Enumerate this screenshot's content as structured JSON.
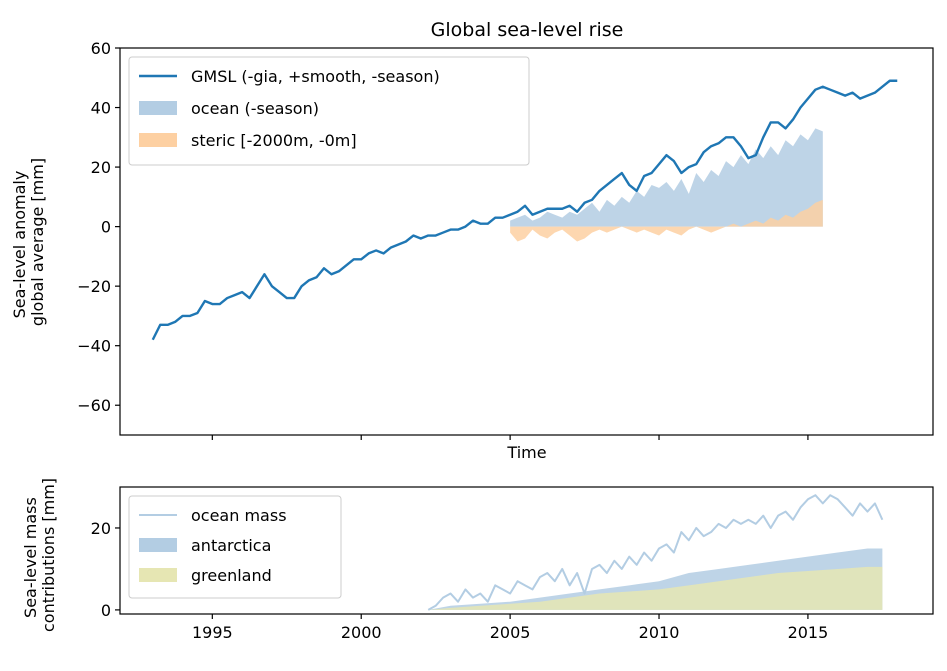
{
  "chart_data": [
    {
      "type": "line",
      "title": "Global sea-level rise",
      "xlabel": "Time",
      "ylabel": [
        "Sea-level anomaly",
        "global average [mm]"
      ],
      "xlim": [
        1991.9,
        2019.2
      ],
      "ylim": [
        -70,
        60
      ],
      "yticks": [
        60,
        40,
        20,
        0,
        -20,
        -40,
        -60
      ],
      "ytick_labels": [
        "60",
        "40",
        "20",
        "0",
        "−20",
        "−40",
        "−60"
      ],
      "xticks": [
        1995,
        2000,
        2005,
        2010,
        2015
      ],
      "show_xtick_labels": false,
      "grid": false,
      "legend_position": "top-left",
      "series": [
        {
          "name": "GMSL (-gia, +smooth, -season)",
          "kind": "line",
          "color": "#1f77b4",
          "x": [
            1993.0,
            1993.25,
            1993.5,
            1993.75,
            1994.0,
            1994.25,
            1994.5,
            1994.75,
            1995.0,
            1995.25,
            1995.5,
            1995.75,
            1996.0,
            1996.25,
            1996.5,
            1996.75,
            1997.0,
            1997.25,
            1997.5,
            1997.75,
            1998.0,
            1998.25,
            1998.5,
            1998.75,
            1999.0,
            1999.25,
            1999.5,
            1999.75,
            2000.0,
            2000.25,
            2000.5,
            2000.75,
            2001.0,
            2001.25,
            2001.5,
            2001.75,
            2002.0,
            2002.25,
            2002.5,
            2002.75,
            2003.0,
            2003.25,
            2003.5,
            2003.75,
            2004.0,
            2004.25,
            2004.5,
            2004.75,
            2005.0,
            2005.25,
            2005.5,
            2005.75,
            2006.0,
            2006.25,
            2006.5,
            2006.75,
            2007.0,
            2007.25,
            2007.5,
            2007.75,
            2008.0,
            2008.25,
            2008.5,
            2008.75,
            2009.0,
            2009.25,
            2009.5,
            2009.75,
            2010.0,
            2010.25,
            2010.5,
            2010.75,
            2011.0,
            2011.25,
            2011.5,
            2011.75,
            2012.0,
            2012.25,
            2012.5,
            2012.75,
            2013.0,
            2013.25,
            2013.5,
            2013.75,
            2014.0,
            2014.25,
            2014.5,
            2014.75,
            2015.0,
            2015.25,
            2015.5,
            2015.75,
            2016.0,
            2016.25,
            2016.5,
            2016.75,
            2017.0,
            2017.25,
            2017.5,
            2017.75,
            2018.0
          ],
          "y": [
            -38,
            -33,
            -33,
            -32,
            -30,
            -30,
            -29,
            -25,
            -26,
            -26,
            -24,
            -23,
            -22,
            -24,
            -20,
            -16,
            -20,
            -22,
            -24,
            -24,
            -20,
            -18,
            -17,
            -14,
            -16,
            -15,
            -13,
            -11,
            -11,
            -9,
            -8,
            -9,
            -7,
            -6,
            -5,
            -3,
            -4,
            -3,
            -3,
            -2,
            -1,
            -1,
            0,
            2,
            1,
            1,
            3,
            3,
            4,
            5,
            7,
            4,
            5,
            6,
            6,
            6,
            7,
            5,
            8,
            9,
            12,
            14,
            16,
            18,
            14,
            12,
            17,
            18,
            21,
            24,
            22,
            18,
            20,
            21,
            25,
            27,
            28,
            30,
            30,
            27,
            23,
            24,
            30,
            35,
            35,
            33,
            36,
            40,
            43,
            46,
            47,
            46,
            45,
            44,
            45,
            43,
            44,
            45,
            47,
            49,
            49
          ]
        },
        {
          "name": "ocean (-season)",
          "kind": "area",
          "color": "#b3cde3",
          "x": [
            2005.0,
            2005.25,
            2005.5,
            2005.75,
            2006.0,
            2006.25,
            2006.5,
            2006.75,
            2007.0,
            2007.25,
            2007.5,
            2007.75,
            2008.0,
            2008.25,
            2008.5,
            2008.75,
            2009.0,
            2009.25,
            2009.5,
            2009.75,
            2010.0,
            2010.25,
            2010.5,
            2010.75,
            2011.0,
            2011.25,
            2011.5,
            2011.75,
            2012.0,
            2012.25,
            2012.5,
            2012.75,
            2013.0,
            2013.25,
            2013.5,
            2013.75,
            2014.0,
            2014.25,
            2014.5,
            2014.75,
            2015.0,
            2015.25,
            2015.5
          ],
          "y": [
            2,
            3,
            4,
            2,
            3,
            5,
            4,
            3,
            5,
            4,
            6,
            8,
            5,
            9,
            7,
            10,
            8,
            12,
            10,
            14,
            13,
            15,
            12,
            16,
            11,
            18,
            15,
            19,
            17,
            22,
            20,
            24,
            21,
            26,
            23,
            27,
            24,
            29,
            27,
            31,
            29,
            33,
            32
          ]
        },
        {
          "name": "steric [-2000m, -0m]",
          "kind": "area",
          "color": "#fdd0a2",
          "x": [
            2005.0,
            2005.25,
            2005.5,
            2005.75,
            2006.0,
            2006.25,
            2006.5,
            2006.75,
            2007.0,
            2007.25,
            2007.5,
            2007.75,
            2008.0,
            2008.25,
            2008.5,
            2008.75,
            2009.0,
            2009.25,
            2009.5,
            2009.75,
            2010.0,
            2010.25,
            2010.5,
            2010.75,
            2011.0,
            2011.25,
            2011.5,
            2011.75,
            2012.0,
            2012.25,
            2012.5,
            2012.75,
            2013.0,
            2013.25,
            2013.5,
            2013.75,
            2014.0,
            2014.25,
            2014.5,
            2014.75,
            2015.0,
            2015.25,
            2015.5
          ],
          "y": [
            -2,
            -5,
            -4,
            -1,
            -3,
            -4,
            -2,
            -1,
            -3,
            -5,
            -4,
            -2,
            -1,
            -2,
            -1,
            0,
            -1,
            -2,
            -1,
            -2,
            -3,
            -1,
            -2,
            -3,
            -1,
            0,
            -1,
            -2,
            -1,
            0,
            1,
            0,
            1,
            2,
            1,
            3,
            2,
            4,
            3,
            5,
            6,
            8,
            9
          ]
        }
      ]
    },
    {
      "type": "line",
      "title": "",
      "xlabel": "",
      "ylabel": [
        "Sea-level mass",
        "contributions [mm]"
      ],
      "xlim": [
        1991.9,
        2019.2
      ],
      "ylim": [
        -1,
        30
      ],
      "yticks": [
        0,
        20
      ],
      "ytick_labels": [
        "0",
        "20"
      ],
      "xticks": [
        1995,
        2000,
        2005,
        2010,
        2015
      ],
      "xtick_labels": [
        "1995",
        "2000",
        "2005",
        "2010",
        "2015"
      ],
      "grid": false,
      "legend_position": "top-left",
      "series": [
        {
          "name": "ocean mass",
          "kind": "line",
          "color": "#b3cde3",
          "x": [
            2002.25,
            2002.5,
            2002.75,
            2003.0,
            2003.25,
            2003.5,
            2003.75,
            2004.0,
            2004.25,
            2004.5,
            2004.75,
            2005.0,
            2005.25,
            2005.5,
            2005.75,
            2006.0,
            2006.25,
            2006.5,
            2006.75,
            2007.0,
            2007.25,
            2007.5,
            2007.75,
            2008.0,
            2008.25,
            2008.5,
            2008.75,
            2009.0,
            2009.25,
            2009.5,
            2009.75,
            2010.0,
            2010.25,
            2010.5,
            2010.75,
            2011.0,
            2011.25,
            2011.5,
            2011.75,
            2012.0,
            2012.25,
            2012.5,
            2012.75,
            2013.0,
            2013.25,
            2013.5,
            2013.75,
            2014.0,
            2014.25,
            2014.5,
            2014.75,
            2015.0,
            2015.25,
            2015.5,
            2015.75,
            2016.0,
            2016.25,
            2016.5,
            2016.75,
            2017.0,
            2017.25,
            2017.5
          ],
          "y": [
            0,
            1,
            3,
            4,
            2,
            5,
            3,
            4,
            2,
            6,
            5,
            4,
            7,
            6,
            5,
            8,
            9,
            7,
            10,
            6,
            9,
            4,
            10,
            11,
            9,
            12,
            10,
            13,
            11,
            14,
            12,
            15,
            16,
            14,
            19,
            17,
            20,
            18,
            19,
            21,
            20,
            22,
            21,
            22,
            21,
            23,
            20,
            23,
            24,
            22,
            25,
            27,
            28,
            26,
            28,
            27,
            25,
            23,
            26,
            24,
            26,
            22
          ]
        },
        {
          "name": "antarctica",
          "kind": "area",
          "color": "#b3cde3",
          "x": [
            2002.25,
            2003.0,
            2004.0,
            2005.0,
            2006.0,
            2007.0,
            2008.0,
            2009.0,
            2010.0,
            2011.0,
            2012.0,
            2013.0,
            2014.0,
            2015.0,
            2016.0,
            2017.0,
            2017.5
          ],
          "y": [
            0,
            1,
            1.5,
            2,
            3,
            4,
            5,
            6,
            7,
            9,
            10,
            11,
            12,
            13,
            14,
            15,
            15
          ]
        },
        {
          "name": "greenland",
          "kind": "area",
          "color": "#e6e6b3",
          "x": [
            2002.25,
            2003.0,
            2004.0,
            2005.0,
            2006.0,
            2007.0,
            2008.0,
            2009.0,
            2010.0,
            2011.0,
            2012.0,
            2013.0,
            2014.0,
            2015.0,
            2016.0,
            2017.0,
            2017.5
          ],
          "y": [
            0,
            0.5,
            1,
            1.5,
            2,
            3,
            4,
            4.5,
            5,
            6,
            7,
            8,
            9,
            9.5,
            10,
            10.5,
            10.5
          ]
        }
      ]
    }
  ]
}
